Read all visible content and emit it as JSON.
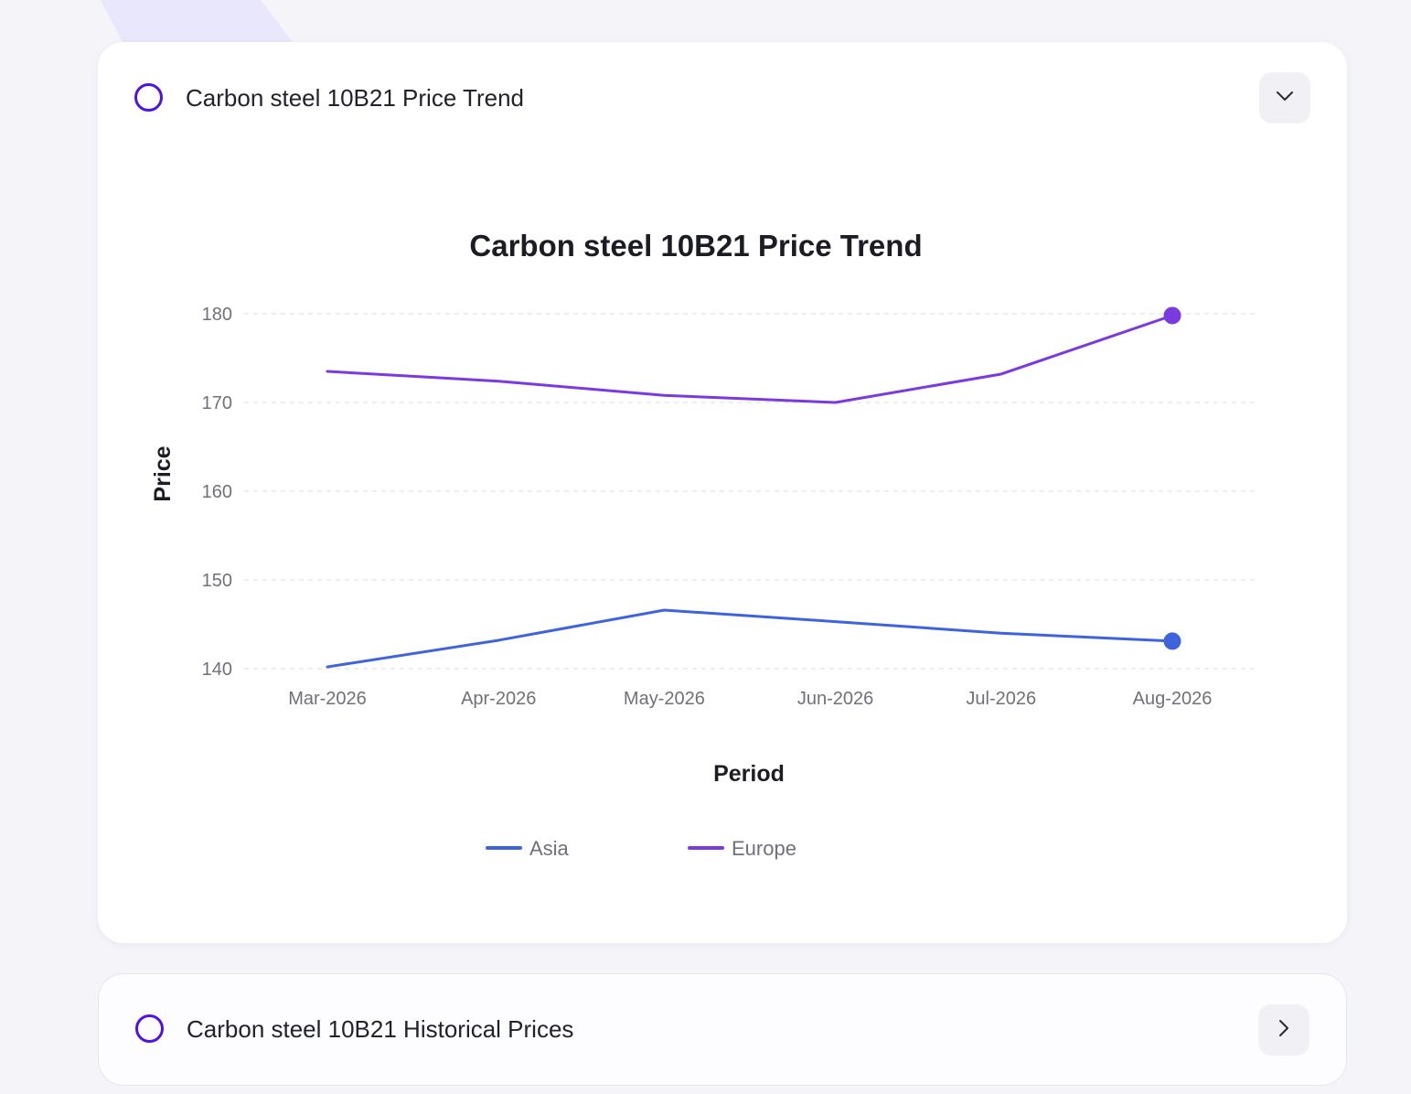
{
  "trend_card": {
    "title": "Carbon steel 10B21 Price Trend",
    "toggle_icon": "chevron-down-icon"
  },
  "history_card": {
    "title": "Carbon steel 10B21 Historical Prices",
    "toggle_icon": "chevron-right-icon"
  },
  "colors": {
    "accent": "#4f12e6",
    "asia": "#3f63dc",
    "europe": "#7a3ae0"
  },
  "chart_data": {
    "type": "line",
    "title": "Carbon steel 10B21 Price Trend",
    "xlabel": "Period",
    "ylabel": "Price",
    "categories": [
      "Mar-2026",
      "Apr-2026",
      "May-2026",
      "Jun-2026",
      "Jul-2026",
      "Aug-2026"
    ],
    "x_dates": [
      "2026-03-01",
      "2026-04-01",
      "2026-05-01",
      "2026-06-01",
      "2026-07-01",
      "2026-08-01"
    ],
    "y_ticks": [
      140,
      150,
      160,
      170,
      180
    ],
    "ylim": [
      140,
      180
    ],
    "grid": true,
    "legend_position": "bottom",
    "series": [
      {
        "name": "Asia",
        "color": "#3f63dc",
        "points": [
          {
            "date": "2026-03-01",
            "value": 140.2
          },
          {
            "date": "2026-04-01",
            "value": 143.2
          },
          {
            "date": "2026-05-01",
            "value": 146.6
          },
          {
            "date": "2026-06-01",
            "value": 145.3
          },
          {
            "date": "2026-07-01",
            "value": 144.0
          },
          {
            "date": "2026-08-01",
            "value": 143.1
          }
        ]
      },
      {
        "name": "Europe",
        "color": "#7a3ae0",
        "points": [
          {
            "date": "2026-03-01",
            "value": 173.5
          },
          {
            "date": "2026-04-01",
            "value": 172.4
          },
          {
            "date": "2026-05-01",
            "value": 170.8
          },
          {
            "date": "2026-06-01",
            "value": 170.0
          },
          {
            "date": "2026-07-01",
            "value": 173.2
          },
          {
            "date": "2026-08-01",
            "value": 179.8
          }
        ]
      }
    ]
  }
}
